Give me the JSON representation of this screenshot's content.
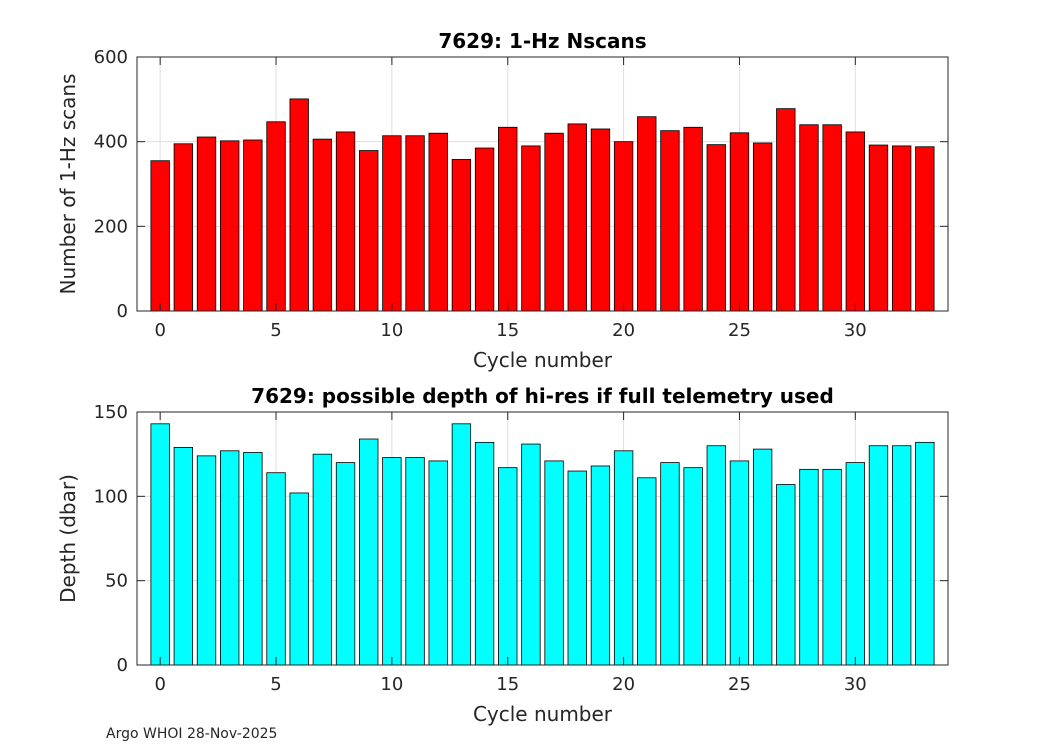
{
  "chart_data": [
    {
      "type": "bar",
      "title": "7629: 1-Hz Nscans",
      "xlabel": "Cycle number",
      "ylabel": "Number of 1-Hz scans",
      "x": [
        0,
        1,
        2,
        3,
        4,
        5,
        6,
        7,
        8,
        9,
        10,
        11,
        12,
        13,
        14,
        15,
        16,
        17,
        18,
        19,
        20,
        21,
        22,
        23,
        24,
        25,
        26,
        27,
        28,
        29,
        30,
        31,
        32,
        33
      ],
      "values": [
        355,
        395,
        411,
        402,
        404,
        447,
        501,
        406,
        423,
        379,
        414,
        414,
        420,
        358,
        385,
        434,
        390,
        420,
        442,
        430,
        400,
        459,
        426,
        434,
        393,
        421,
        397,
        478,
        440,
        440,
        423,
        392,
        390,
        388
      ],
      "xlim": [
        -1,
        34
      ],
      "ylim": [
        0,
        600
      ],
      "xticks": [
        0,
        5,
        10,
        15,
        20,
        25,
        30
      ],
      "yticks": [
        0,
        200,
        400,
        600
      ],
      "bar_color": "#ff0000",
      "grid": true
    },
    {
      "type": "bar",
      "title": "7629: possible depth of hi-res if full telemetry used",
      "xlabel": "Cycle number",
      "ylabel": "Depth (dbar)",
      "x": [
        0,
        1,
        2,
        3,
        4,
        5,
        6,
        7,
        8,
        9,
        10,
        11,
        12,
        13,
        14,
        15,
        16,
        17,
        18,
        19,
        20,
        21,
        22,
        23,
        24,
        25,
        26,
        27,
        28,
        29,
        30,
        31,
        32,
        33
      ],
      "values": [
        143,
        129,
        124,
        127,
        126,
        114,
        102,
        125,
        120,
        134,
        123,
        123,
        121,
        143,
        132,
        117,
        131,
        121,
        115,
        118,
        127,
        111,
        120,
        117,
        130,
        121,
        128,
        107,
        116,
        116,
        120,
        130,
        130,
        132
      ],
      "xlim": [
        -1,
        34
      ],
      "ylim": [
        0,
        150
      ],
      "xticks": [
        0,
        5,
        10,
        15,
        20,
        25,
        30
      ],
      "yticks": [
        0,
        50,
        100,
        150
      ],
      "bar_color": "#00ffff",
      "grid": true
    }
  ],
  "footer": "Argo WHOI 28-Nov-2025"
}
